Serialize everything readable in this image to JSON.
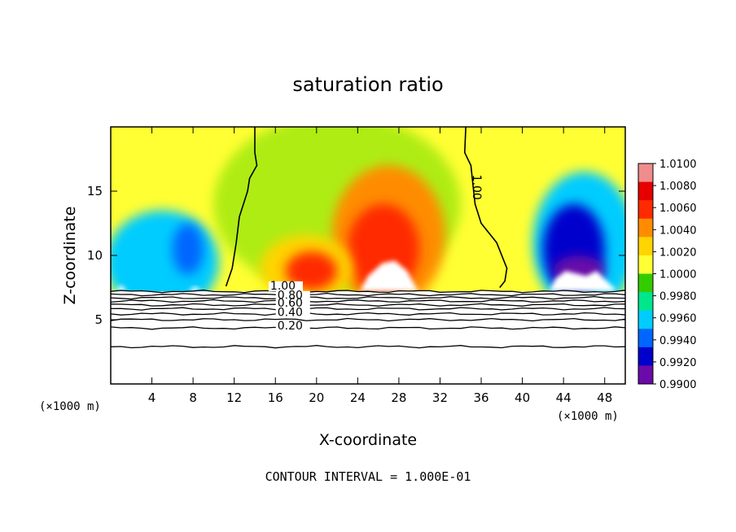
{
  "chart_data": {
    "type": "heatmap",
    "title": "saturation ratio",
    "xlabel": "X-coordinate",
    "ylabel": "Z-coordinate",
    "x_unit_left": "(×1000 m)",
    "x_unit_right": "(×1000 m)",
    "xlim": [
      0,
      50
    ],
    "ylim": [
      0,
      20
    ],
    "x_ticks": [
      4,
      8,
      12,
      16,
      20,
      24,
      28,
      32,
      36,
      40,
      44,
      48
    ],
    "x_tick_labels": [
      "4",
      "8",
      "12",
      "16",
      "20",
      "24",
      "28",
      "32",
      "36",
      "40",
      "44",
      "48"
    ],
    "y_ticks": [
      5,
      10,
      15
    ],
    "y_tick_labels": [
      "5",
      "10",
      "15"
    ],
    "colorbar": {
      "ticks": [
        1.01,
        1.008,
        1.006,
        1.004,
        1.002,
        1.0,
        0.998,
        0.996,
        0.994,
        0.992,
        0.99
      ],
      "tick_labels": [
        "1.0100",
        "1.0080",
        "1.0060",
        "1.0040",
        "1.0020",
        "1.0000",
        "0.9980",
        "0.9960",
        "0.9940",
        "0.9920",
        "0.9900"
      ],
      "colors": [
        "#f08c8c",
        "#e60000",
        "#ff2a00",
        "#ff8c00",
        "#ffd400",
        "#ffff33",
        "#33cc00",
        "#00e68c",
        "#00ccff",
        "#0066ff",
        "#0000cc",
        "#6a0aa8"
      ]
    },
    "contour_labels": [
      "1.00",
      "0.80",
      "0.60",
      "0.40",
      "0.20",
      "1.00"
    ],
    "contour_interval_text": "CONTOUR INTERVAL = 1.000E-01",
    "surface_height": 7.2,
    "contour_levels": [
      {
        "level": "1.00",
        "z": 7.2
      },
      {
        "level": "0.90",
        "z": 6.95
      },
      {
        "level": "0.80",
        "z": 6.7
      },
      {
        "level": "0.70",
        "z": 6.45
      },
      {
        "level": "0.60",
        "z": 6.15
      },
      {
        "level": "0.50",
        "z": 5.85
      },
      {
        "level": "0.40",
        "z": 5.45
      },
      {
        "level": "0.30",
        "z": 5.0
      },
      {
        "level": "0.20",
        "z": 4.35
      },
      {
        "level": "0.10",
        "z": 2.9
      }
    ],
    "contour_1_00_left": [
      [
        14.0,
        20
      ],
      [
        14.0,
        18
      ],
      [
        14.2,
        17
      ],
      [
        13.5,
        16
      ],
      [
        13.3,
        15
      ],
      [
        12.5,
        13
      ],
      [
        12.2,
        11
      ],
      [
        11.8,
        9
      ],
      [
        11.2,
        7.6
      ]
    ],
    "contour_1_00_right": [
      [
        34.5,
        20
      ],
      [
        34.4,
        18
      ],
      [
        35.0,
        17
      ],
      [
        35.2,
        15.5
      ],
      [
        35.4,
        14
      ],
      [
        36.0,
        12.5
      ],
      [
        37.5,
        11
      ],
      [
        38.5,
        9
      ],
      [
        38.3,
        8
      ],
      [
        37.8,
        7.5
      ]
    ],
    "field_blobs": [
      {
        "x": 27,
        "z": 11.5,
        "rx": 5.5,
        "rz": 5.5,
        "value": 1.004
      },
      {
        "x": 26.5,
        "z": 10.5,
        "rx": 3.5,
        "rz": 3.5,
        "value": 1.006
      },
      {
        "x": 19,
        "z": 9.0,
        "rx": 4.5,
        "rz": 2.6,
        "value": 1.002
      },
      {
        "x": 19.5,
        "z": 8.8,
        "rx": 2.5,
        "rz": 1.5,
        "value": 1.006
      },
      {
        "x": 5,
        "z": 9.5,
        "rx": 5.5,
        "rz": 4.0,
        "value": 0.996
      },
      {
        "x": 7.5,
        "z": 10.5,
        "rx": 1.5,
        "rz": 2.0,
        "value": 0.994
      },
      {
        "x": 46,
        "z": 11.0,
        "rx": 5.0,
        "rz": 5.5,
        "value": 0.996
      },
      {
        "x": 45,
        "z": 10.5,
        "rx": 3.0,
        "rz": 3.5,
        "value": 0.992
      },
      {
        "x": 45.5,
        "z": 8.8,
        "rx": 2.5,
        "rz": 1.2,
        "value": 0.99
      }
    ]
  }
}
